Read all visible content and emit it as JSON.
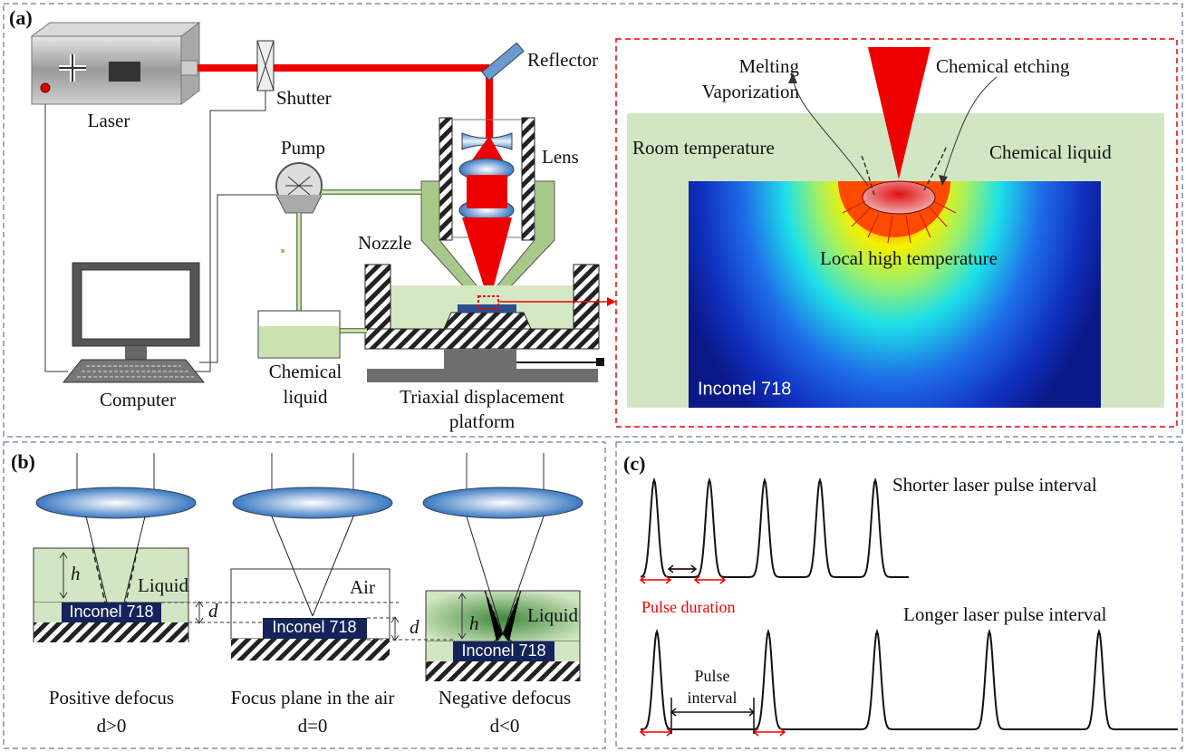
{
  "panel_a": {
    "label": "(a)",
    "components": {
      "laser": "Laser",
      "shutter": "Shutter",
      "reflector": "Reflector",
      "pump": "Pump",
      "lens": "Lens",
      "nozzle": "Nozzle",
      "computer": "Computer",
      "chemical_liquid": [
        "Chemical",
        "liquid"
      ],
      "platform": [
        "Triaxial displacement",
        "platform"
      ]
    },
    "inset": {
      "melting": [
        "Melting",
        "Vaporization"
      ],
      "etching": "Chemical etching",
      "room_temperature": "Room temperature",
      "chemical_liquid": "Chemical liquid",
      "local_high_temperature": "Local high temperature",
      "material": "Inconel 718"
    }
  },
  "panel_b": {
    "label": "(b)",
    "cases": [
      {
        "caption": [
          "Positive defocus",
          "d>0"
        ],
        "medium": "Liquid",
        "material": "Inconel 718",
        "height": "h",
        "offset": "d"
      },
      {
        "caption": [
          "Focus plane in the air",
          "d=0"
        ],
        "medium": "Air",
        "material": "Inconel 718",
        "offset": "d"
      },
      {
        "caption": [
          "Negative defocus",
          "d<0"
        ],
        "medium": "Liquid",
        "material": "Inconel 718",
        "height": "h"
      }
    ]
  },
  "panel_c": {
    "label": "(c)",
    "short_interval": "Shorter laser pulse interval",
    "pulse_duration": "Pulse duration",
    "long_interval": "Longer laser pulse interval",
    "pulse_interval": [
      "Pulse",
      "interval"
    ]
  }
}
